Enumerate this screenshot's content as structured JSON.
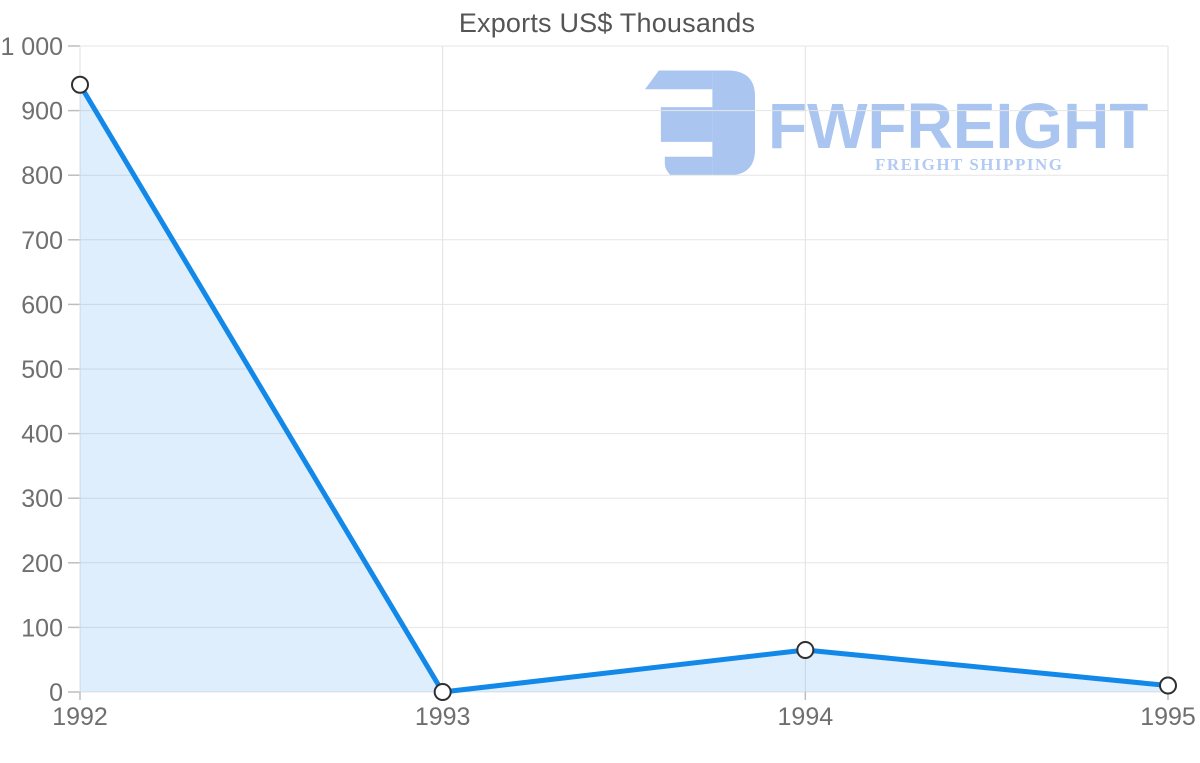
{
  "chart_data": {
    "type": "area",
    "title": "Exports US$ Thousands",
    "categories": [
      "1992",
      "1993",
      "1994",
      "1995"
    ],
    "values": [
      940,
      0,
      65,
      10
    ],
    "series_name": "Exports US$ Thousands",
    "xlabel": "",
    "ylabel": "",
    "ylim": [
      0,
      1000
    ],
    "yticks": [
      0,
      100,
      200,
      300,
      400,
      500,
      600,
      700,
      800,
      900,
      1000
    ],
    "ytick_labels": [
      "0",
      "100",
      "200",
      "300",
      "400",
      "500",
      "600",
      "700",
      "800",
      "900",
      "1 000"
    ],
    "grid": "on",
    "legend": "none",
    "colors": {
      "line": "#1289e9",
      "fill": "rgba(18,137,233,0.14)",
      "marker_fill": "#ffffff",
      "marker_stroke": "#2f2f2f",
      "grid_h": "#e6e6e6",
      "grid_v": "#e2e2e2",
      "tick": "#bdbdbd",
      "axis_text": "#6f6f6f",
      "title_text": "#555555"
    }
  },
  "watermark": {
    "brand": "FWFREIGHT",
    "tagline": "FREIGHT SHIPPING",
    "brand_color": "#a9c5f0",
    "tagline_color": "#b3cbf2",
    "mark_icon": "fwfreight-mark"
  }
}
